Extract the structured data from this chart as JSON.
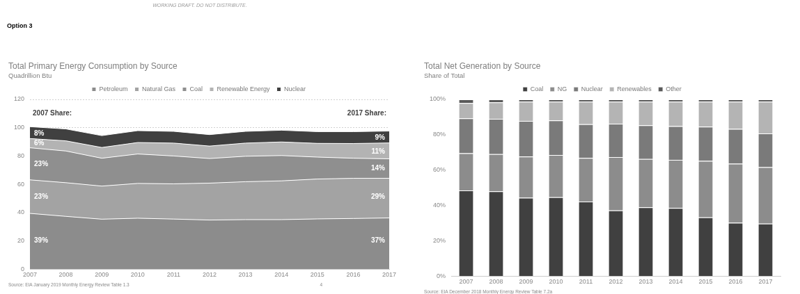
{
  "chart_data": [
    {
      "type": "area",
      "title": "Total Primary Energy Consumption by Source",
      "subtitle": "Quadrillion Btu",
      "stacked": true,
      "categories": [
        "2007",
        "2008",
        "2009",
        "2010",
        "2011",
        "2012",
        "2013",
        "2014",
        "2015",
        "2016",
        "2017"
      ],
      "series": [
        {
          "name": "Petroleum",
          "color": "#8c8c8c",
          "values": [
            39.4,
            37.3,
            35.3,
            36.0,
            35.4,
            34.7,
            35.0,
            35.0,
            35.5,
            35.8,
            36.2
          ]
        },
        {
          "name": "Natural Gas",
          "color": "#a3a3a3",
          "values": [
            23.7,
            23.8,
            23.4,
            24.6,
            24.9,
            26.1,
            26.8,
            27.4,
            28.2,
            28.4,
            28.0
          ]
        },
        {
          "name": "Coal",
          "color": "#8f8f8f",
          "values": [
            22.7,
            22.4,
            19.7,
            20.8,
            19.7,
            17.4,
            18.0,
            17.9,
            15.5,
            14.2,
            13.8
          ]
        },
        {
          "name": "Renewable Energy",
          "color": "#b3b3b3",
          "values": [
            6.5,
            7.2,
            7.6,
            8.1,
            9.1,
            8.8,
            9.3,
            9.6,
            9.7,
            10.4,
            11.2
          ]
        },
        {
          "name": "Nuclear",
          "color": "#404040",
          "values": [
            8.4,
            8.4,
            8.4,
            8.4,
            8.3,
            8.1,
            8.3,
            8.3,
            8.3,
            8.4,
            8.4
          ]
        }
      ],
      "ylim": [
        0,
        120
      ],
      "yticks": [
        0,
        20,
        40,
        60,
        80,
        100,
        120
      ],
      "grid": "y",
      "legend": "top",
      "annotations": [
        "WORKING DRAFT. DO NOT DISTRIBUTE.",
        "Option 3",
        "2007 Share:",
        "2017 Share:",
        "Source: EIA January 2019 Monthly Energy Review Table 1.3",
        "4",
        {
          "text": "8%",
          "x": "2007",
          "y": 96
        },
        {
          "text": "6%",
          "x": "2007",
          "y": 89
        },
        {
          "text": "23%",
          "x": "2007",
          "y": 74
        },
        {
          "text": "23%",
          "x": "2007",
          "y": 51
        },
        {
          "text": "39%",
          "x": "2007",
          "y": 20
        },
        {
          "text": "9%",
          "x": "2017",
          "y": 93
        },
        {
          "text": "11%",
          "x": "2017",
          "y": 83
        },
        {
          "text": "14%",
          "x": "2017",
          "y": 71
        },
        {
          "text": "29%",
          "x": "2017",
          "y": 51
        },
        {
          "text": "37%",
          "x": "2017",
          "y": 20
        }
      ]
    },
    {
      "type": "bar",
      "title": "Total Net Generation by Source",
      "subtitle": "Share of Total",
      "stacked": true,
      "categories": [
        "2007",
        "2008",
        "2009",
        "2010",
        "2011",
        "2012",
        "2013",
        "2014",
        "2015",
        "2016",
        "2017"
      ],
      "series": [
        {
          "name": "Coal",
          "color": "#404040",
          "values": [
            48.5,
            48.0,
            44.3,
            44.6,
            42.2,
            37.2,
            38.9,
            38.5,
            33.2,
            30.2,
            29.7
          ]
        },
        {
          "name": "NG",
          "color": "#8c8c8c",
          "values": [
            21.0,
            21.0,
            23.3,
            23.9,
            24.7,
            30.1,
            27.4,
            27.3,
            32.0,
            33.4,
            31.9
          ]
        },
        {
          "name": "Nuclear",
          "color": "#7a7a7a",
          "values": [
            19.8,
            20.0,
            20.2,
            19.6,
            19.0,
            18.9,
            19.0,
            19.1,
            19.4,
            19.7,
            19.1
          ]
        },
        {
          "name": "Renewables",
          "color": "#b4b4b4",
          "values": [
            8.6,
            9.3,
            10.9,
            10.6,
            12.8,
            12.5,
            13.4,
            13.8,
            14.1,
            15.4,
            18.0
          ]
        },
        {
          "name": "Other",
          "color": "#595959",
          "values": [
            2.1,
            1.7,
            1.3,
            1.3,
            1.3,
            1.3,
            1.3,
            1.3,
            1.3,
            1.3,
            1.3
          ]
        }
      ],
      "ylim": [
        0,
        100
      ],
      "yticks": [
        {
          "value": 0,
          "label": "0%"
        },
        {
          "value": 20,
          "label": "20%"
        },
        {
          "value": 40,
          "label": "40%"
        },
        {
          "value": 60,
          "label": "60%"
        },
        {
          "value": 80,
          "label": "80%"
        },
        {
          "value": 100,
          "label": "100%"
        }
      ],
      "legend": "top",
      "annotations": [
        "Source: EIA December 2018 Monthly Energy Review Table 7.2a"
      ]
    }
  ]
}
